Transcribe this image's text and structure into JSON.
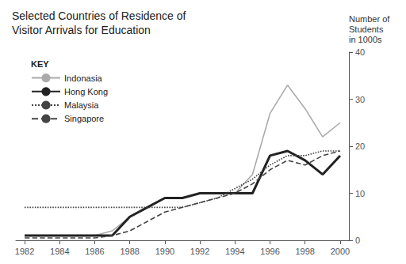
{
  "chart_data": {
    "type": "line",
    "title": "Selected Countries of Residence of\nVisitor Arrivals for Education",
    "ylabel": "Number of\nStudents\nin 1000s",
    "annotations": [
      "KEY"
    ],
    "x": [
      1982,
      1983,
      1984,
      1985,
      1986,
      1987,
      1988,
      1989,
      1990,
      1991,
      1992,
      1993,
      1994,
      1995,
      1996,
      1997,
      1998,
      1999,
      2000
    ],
    "series": [
      {
        "name": "Indonasia",
        "color": "#aaaaaa",
        "line_style": "solid",
        "values": [
          1,
          1,
          1,
          1,
          1,
          2,
          5,
          7,
          9,
          9,
          10,
          10,
          10,
          14,
          27,
          33,
          28,
          22,
          25
        ]
      },
      {
        "name": "Hong Kong",
        "color": "#222222",
        "line_style": "solid",
        "values": [
          1,
          1,
          1,
          1,
          1,
          1,
          5,
          7,
          9,
          9,
          10,
          10,
          10,
          10,
          18,
          19,
          17,
          14,
          18
        ]
      },
      {
        "name": "Malaysia",
        "color": "#444444",
        "line_style": "dotted",
        "values": [
          7,
          7,
          7,
          7,
          7,
          7,
          7,
          7,
          7,
          7,
          8,
          9,
          11,
          13,
          16,
          18,
          18,
          19,
          19
        ]
      },
      {
        "name": "Singapore",
        "color": "#444444",
        "line_style": "dashed",
        "values": [
          0.5,
          0.5,
          0.5,
          0.5,
          0.5,
          1,
          2,
          4,
          6,
          7,
          8,
          9,
          10,
          12,
          15,
          17,
          16,
          18,
          19
        ]
      }
    ],
    "xlim": [
      1981.5,
      2000.5
    ],
    "xticks": [
      1982,
      1984,
      1986,
      1988,
      1990,
      1992,
      1994,
      1996,
      1998,
      2000
    ],
    "ylim": [
      0,
      40
    ],
    "yticks": [
      0,
      10,
      20,
      30,
      40
    ],
    "grid": false,
    "legend": "upper left"
  }
}
